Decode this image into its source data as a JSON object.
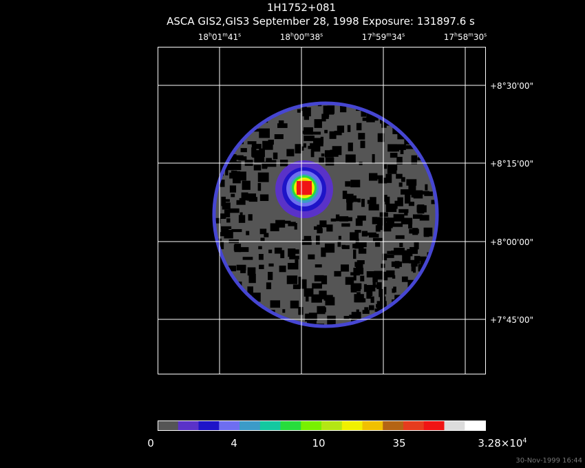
{
  "title": "1H1752+081",
  "subtitle": "ASCA GIS2,GIS3 September 28, 1998 Exposure: 131897.6 s",
  "ra_labels": [
    [
      "18",
      "h",
      "01",
      "m",
      "41",
      "s"
    ],
    [
      "18",
      "h",
      "00",
      "m",
      "38",
      "s"
    ],
    [
      "17",
      "h",
      "59",
      "m",
      "34",
      "s"
    ],
    [
      "17",
      "h",
      "58",
      "m",
      "30",
      "s"
    ]
  ],
  "dec_labels": [
    "+8°30'00\"",
    "+8°15'00\"",
    "+8°00'00\"",
    "+7°45'00\""
  ],
  "colorbar": {
    "colors": [
      "#555555",
      "#5a32c8",
      "#1e14c8",
      "#6e6ef0",
      "#3c9bc8",
      "#14c8a0",
      "#28dc3c",
      "#78f000",
      "#b4e614",
      "#f0f000",
      "#f0c000",
      "#b46414",
      "#e63c1e",
      "#f01414",
      "#dcdcdc",
      "#ffffff"
    ],
    "labels": [
      [
        "0"
      ],
      [
        "4"
      ],
      [
        "10"
      ],
      [
        "35"
      ],
      [
        "3.28×10",
        "4"
      ]
    ]
  },
  "timestamp": "30-Nov-1999 16:44"
}
